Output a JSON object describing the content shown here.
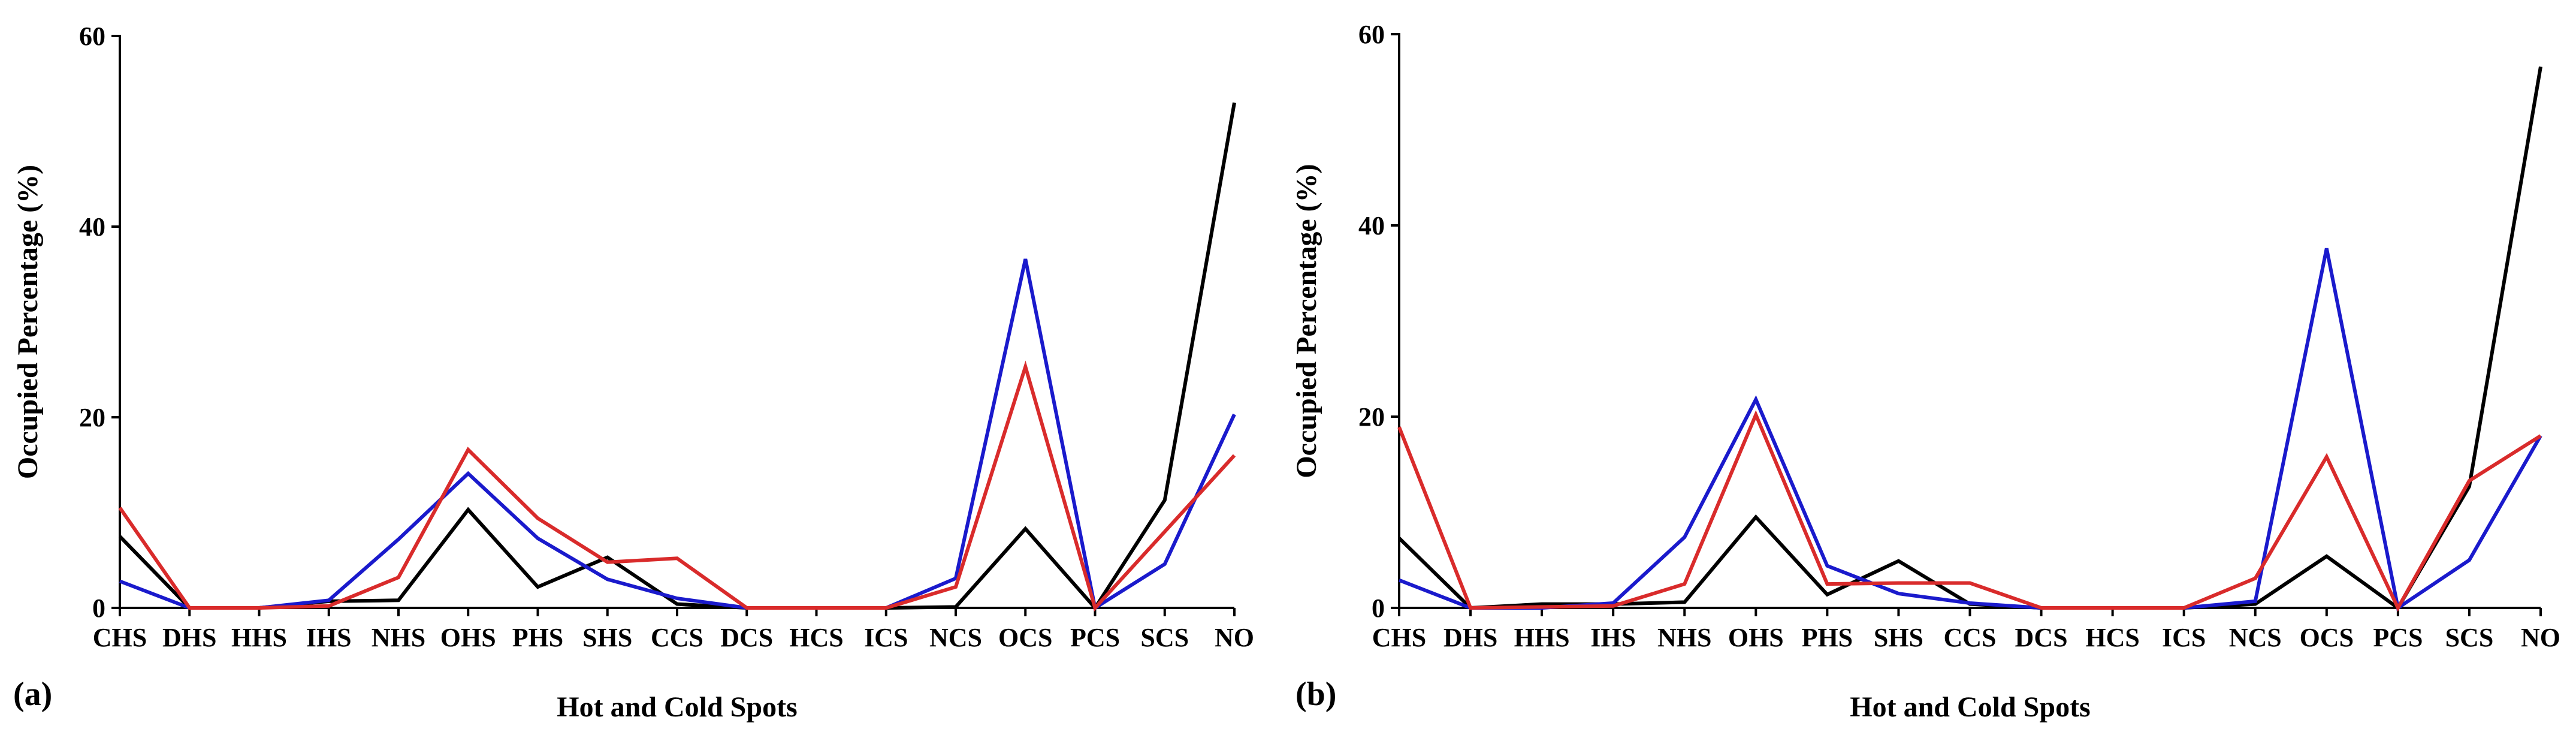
{
  "chart_data": [
    {
      "panel": "(a)",
      "type": "line",
      "xlabel": "Hot and Cold Spots",
      "ylabel": "Occupied Percentage (%)",
      "ylim": [
        0,
        60
      ],
      "yticks": [
        0,
        20,
        40,
        60
      ],
      "categories": [
        "CHS",
        "DHS",
        "HHS",
        "IHS",
        "NHS",
        "OHS",
        "PHS",
        "SHS",
        "CCS",
        "DCS",
        "HCS",
        "ICS",
        "NCS",
        "OCS",
        "PCS",
        "SCS",
        "NO"
      ],
      "series": [
        {
          "name": "black",
          "color": "#000000",
          "values": [
            7.5,
            0,
            0,
            0.7,
            0.8,
            10.3,
            2.2,
            5.3,
            0.4,
            0,
            0,
            0,
            0.1,
            8.3,
            0,
            11.3,
            53
          ]
        },
        {
          "name": "blue",
          "color": "#1a1acc",
          "values": [
            2.8,
            0,
            0,
            0.8,
            7.2,
            14.1,
            7.3,
            3,
            1,
            0,
            0,
            0,
            3.1,
            36.6,
            0,
            4.6,
            20.3
          ]
        },
        {
          "name": "red",
          "color": "#d92b2b",
          "values": [
            10.5,
            0,
            0,
            0.2,
            3.2,
            16.6,
            9.4,
            4.8,
            5.2,
            0,
            0,
            0,
            2.2,
            25.3,
            0,
            8,
            16
          ]
        }
      ]
    },
    {
      "panel": "(b)",
      "type": "line",
      "xlabel": "Hot and Cold Spots",
      "ylabel": "Occupied Percentage (%)",
      "ylim": [
        0,
        60
      ],
      "yticks": [
        0,
        20,
        40,
        60
      ],
      "categories": [
        "CHS",
        "DHS",
        "HHS",
        "IHS",
        "NHS",
        "OHS",
        "PHS",
        "SHS",
        "CCS",
        "DCS",
        "HCS",
        "ICS",
        "NCS",
        "OCS",
        "PCS",
        "SCS",
        "NO"
      ],
      "series": [
        {
          "name": "black",
          "color": "#000000",
          "values": [
            7.3,
            0,
            0.4,
            0.4,
            0.6,
            9.5,
            1.4,
            4.9,
            0.4,
            0,
            0,
            0,
            0.4,
            5.4,
            0,
            12.7,
            56.6
          ]
        },
        {
          "name": "blue",
          "color": "#1a1acc",
          "values": [
            2.9,
            0,
            0,
            0.5,
            7.4,
            21.8,
            4.4,
            1.5,
            0.5,
            0,
            0,
            0,
            0.7,
            37.6,
            0,
            5,
            18
          ]
        },
        {
          "name": "red",
          "color": "#d92b2b",
          "values": [
            18.9,
            0,
            0.1,
            0.2,
            2.5,
            20.2,
            2.5,
            2.6,
            2.6,
            0,
            0,
            0,
            3.1,
            15.8,
            0,
            13.3,
            18
          ]
        }
      ]
    }
  ]
}
